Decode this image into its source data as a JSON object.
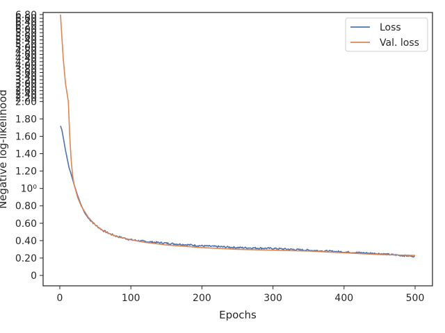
{
  "chart_data": {
    "type": "line",
    "title": "",
    "xlabel": "Epochs",
    "ylabel": "Negative log-likelihood",
    "xlim": [
      -25,
      525
    ],
    "x_ticks": [
      0,
      100,
      200,
      300,
      400,
      500
    ],
    "x_tick_labels": [
      "0",
      "100",
      "200",
      "300",
      "400",
      "500"
    ],
    "y_ticks": [
      {
        "value": 0.0,
        "label": "0"
      },
      {
        "value": 0.2,
        "label": "0.20"
      },
      {
        "value": 0.4,
        "label": "0.40"
      },
      {
        "value": 0.6,
        "label": "0.60"
      },
      {
        "value": 0.8,
        "label": "0.80"
      },
      {
        "value": 1.0,
        "label": "10⁰"
      },
      {
        "value": 1.2,
        "label": "1.20"
      },
      {
        "value": 1.4,
        "label": "1.40"
      },
      {
        "value": 1.6,
        "label": "1.60"
      },
      {
        "value": 1.8,
        "label": "1.80"
      },
      {
        "value": 2.0,
        "label": "2.00"
      },
      {
        "value": 2.2,
        "label": "2.20"
      },
      {
        "value": 2.4,
        "label": "2.40"
      },
      {
        "value": 2.6,
        "label": "2.60"
      },
      {
        "value": 2.8,
        "label": "2.80"
      },
      {
        "value": 3.0,
        "label": "3.00"
      },
      {
        "value": 3.2,
        "label": "3.20"
      },
      {
        "value": 3.4,
        "label": "3.40"
      },
      {
        "value": 3.6,
        "label": "3.60"
      },
      {
        "value": 3.8,
        "label": "3.80"
      },
      {
        "value": 4.0,
        "label": "4.00"
      },
      {
        "value": 4.2,
        "label": "4.20"
      },
      {
        "value": 4.4,
        "label": "4.40"
      },
      {
        "value": 4.6,
        "label": "4.60"
      },
      {
        "value": 4.8,
        "label": "4.80"
      },
      {
        "value": 5.0,
        "label": "5.00"
      },
      {
        "value": 5.2,
        "label": "5.20"
      },
      {
        "value": 5.4,
        "label": "5.40"
      },
      {
        "value": 5.6,
        "label": "5.60"
      },
      {
        "value": 5.8,
        "label": "5.80"
      },
      {
        "value": 6.0,
        "label": "6.00"
      },
      {
        "value": 6.2,
        "label": "6.20"
      },
      {
        "value": 6.4,
        "label": "6.40"
      },
      {
        "value": 6.6,
        "label": "6.60"
      },
      {
        "value": 6.8,
        "label": "6.80"
      }
    ],
    "y_axis_anchors": [
      {
        "value": 0.0,
        "frac": 0.0
      },
      {
        "value": 2.0,
        "frac": 0.6667
      },
      {
        "value": 6.8,
        "frac": 1.0
      }
    ],
    "ylim": [
      -0.12,
      6.83
    ],
    "grid": false,
    "legend_position": "top-right",
    "series": [
      {
        "name": "Loss",
        "color": "#4c72b0",
        "noise": 0.01,
        "x": [
          1,
          3,
          5,
          8,
          10,
          13,
          15,
          20,
          25,
          30,
          35,
          40,
          50,
          60,
          70,
          80,
          90,
          100,
          120,
          150,
          200,
          250,
          300,
          350,
          400,
          450,
          480,
          500
        ],
        "y": [
          1.72,
          1.67,
          1.58,
          1.44,
          1.36,
          1.24,
          1.19,
          1.05,
          0.92,
          0.81,
          0.72,
          0.66,
          0.58,
          0.52,
          0.48,
          0.45,
          0.43,
          0.41,
          0.39,
          0.37,
          0.34,
          0.32,
          0.31,
          0.29,
          0.27,
          0.25,
          0.23,
          0.22
        ]
      },
      {
        "name": "Val. loss",
        "color": "#dd8452",
        "noise": 0.0,
        "x": [
          1,
          3,
          5,
          8,
          10,
          12,
          14,
          16,
          18,
          20,
          25,
          30,
          40,
          50,
          60,
          70,
          80,
          90,
          100,
          120,
          150,
          200,
          250,
          300,
          350,
          400,
          450,
          500
        ],
        "y": [
          6.8,
          5.5,
          4.3,
          3.0,
          2.5,
          2.0,
          1.6,
          1.33,
          1.15,
          1.05,
          0.9,
          0.8,
          0.67,
          0.58,
          0.52,
          0.48,
          0.45,
          0.43,
          0.41,
          0.38,
          0.35,
          0.32,
          0.3,
          0.29,
          0.28,
          0.26,
          0.24,
          0.23
        ]
      }
    ]
  }
}
